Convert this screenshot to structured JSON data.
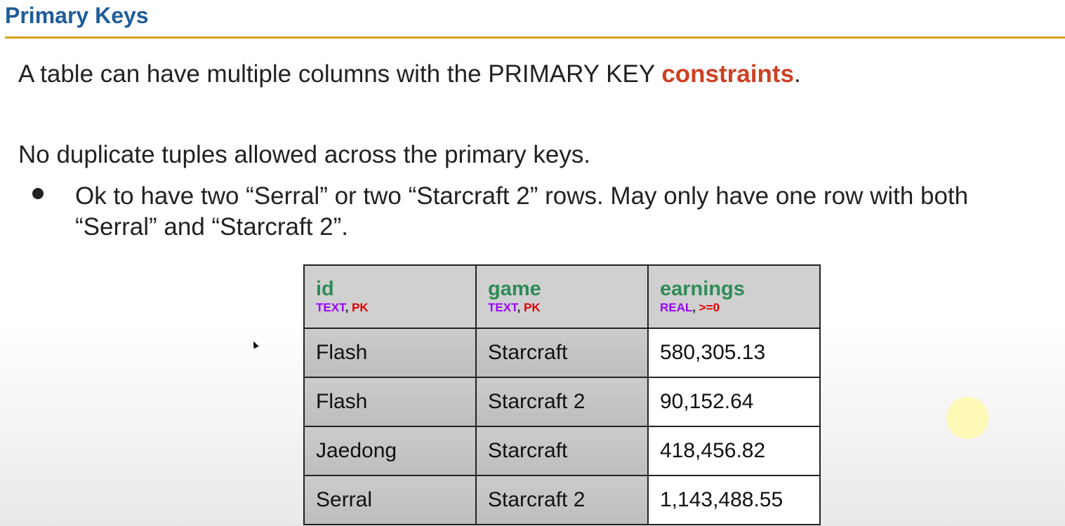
{
  "slide": {
    "title": "Primary Keys",
    "line1": {
      "before": "A table can have multiple columns with the PRIMARY KEY ",
      "highlight": "constraints",
      "after": "."
    },
    "line2": "No duplicate tuples allowed across the primary keys.",
    "bullets": [
      "Ok to have two “Serral” or two “Starcraft 2” rows. May only have one row with both “Serral” and “Starcraft 2”."
    ]
  },
  "table": {
    "columns": [
      {
        "name": "id",
        "type": "TEXT",
        "constraint": "PK"
      },
      {
        "name": "game",
        "type": "TEXT",
        "constraint": "PK"
      },
      {
        "name": "earnings",
        "type": "REAL",
        "constraint": ">=0"
      }
    ],
    "rows": [
      [
        "Flash",
        "Starcraft",
        "580,305.13"
      ],
      [
        "Flash",
        "Starcraft 2",
        "90,152.64"
      ],
      [
        "Jaedong",
        "Starcraft",
        "418,456.82"
      ],
      [
        "Serral",
        "Starcraft 2",
        "1,143,488.55"
      ]
    ]
  },
  "colors": {
    "title": "#1f5c99",
    "title_rule": "#d8a21e",
    "highlight": "#cc4125",
    "column_name": "#2e8b57",
    "type": "#9900ff",
    "constraint": "#e00000"
  },
  "icons": {
    "cursor": "mouse-cursor-icon",
    "pointer_highlight": "pointer-highlight-circle"
  }
}
